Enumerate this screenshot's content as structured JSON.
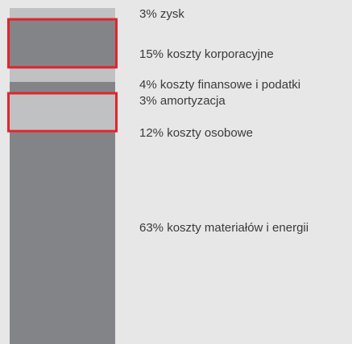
{
  "chart_data": {
    "type": "bar",
    "orientation": "stacked-vertical",
    "title": "",
    "xlabel": "",
    "ylabel": "",
    "ylim": [
      0,
      100
    ],
    "segments": [
      {
        "label": "3% zysk",
        "value": 3,
        "color": "#c0c1c3",
        "highlighted": false
      },
      {
        "label": "15% koszty korporacyjne",
        "value": 15,
        "color": "#838488",
        "highlighted": true
      },
      {
        "label": "4% koszty finansowe i podatki",
        "value": 4,
        "color": "#c0c1c3",
        "highlighted": false
      },
      {
        "label": "3% amortyzacja",
        "value": 3,
        "color": "#838488",
        "highlighted": false
      },
      {
        "label": "12% koszty osobowe",
        "value": 12,
        "color": "#c0c1c3",
        "highlighted": true
      },
      {
        "label": "63% koszty materiałów i energii",
        "value": 63,
        "color": "#838488",
        "highlighted": false
      }
    ],
    "highlight_color": "#e2242b"
  }
}
